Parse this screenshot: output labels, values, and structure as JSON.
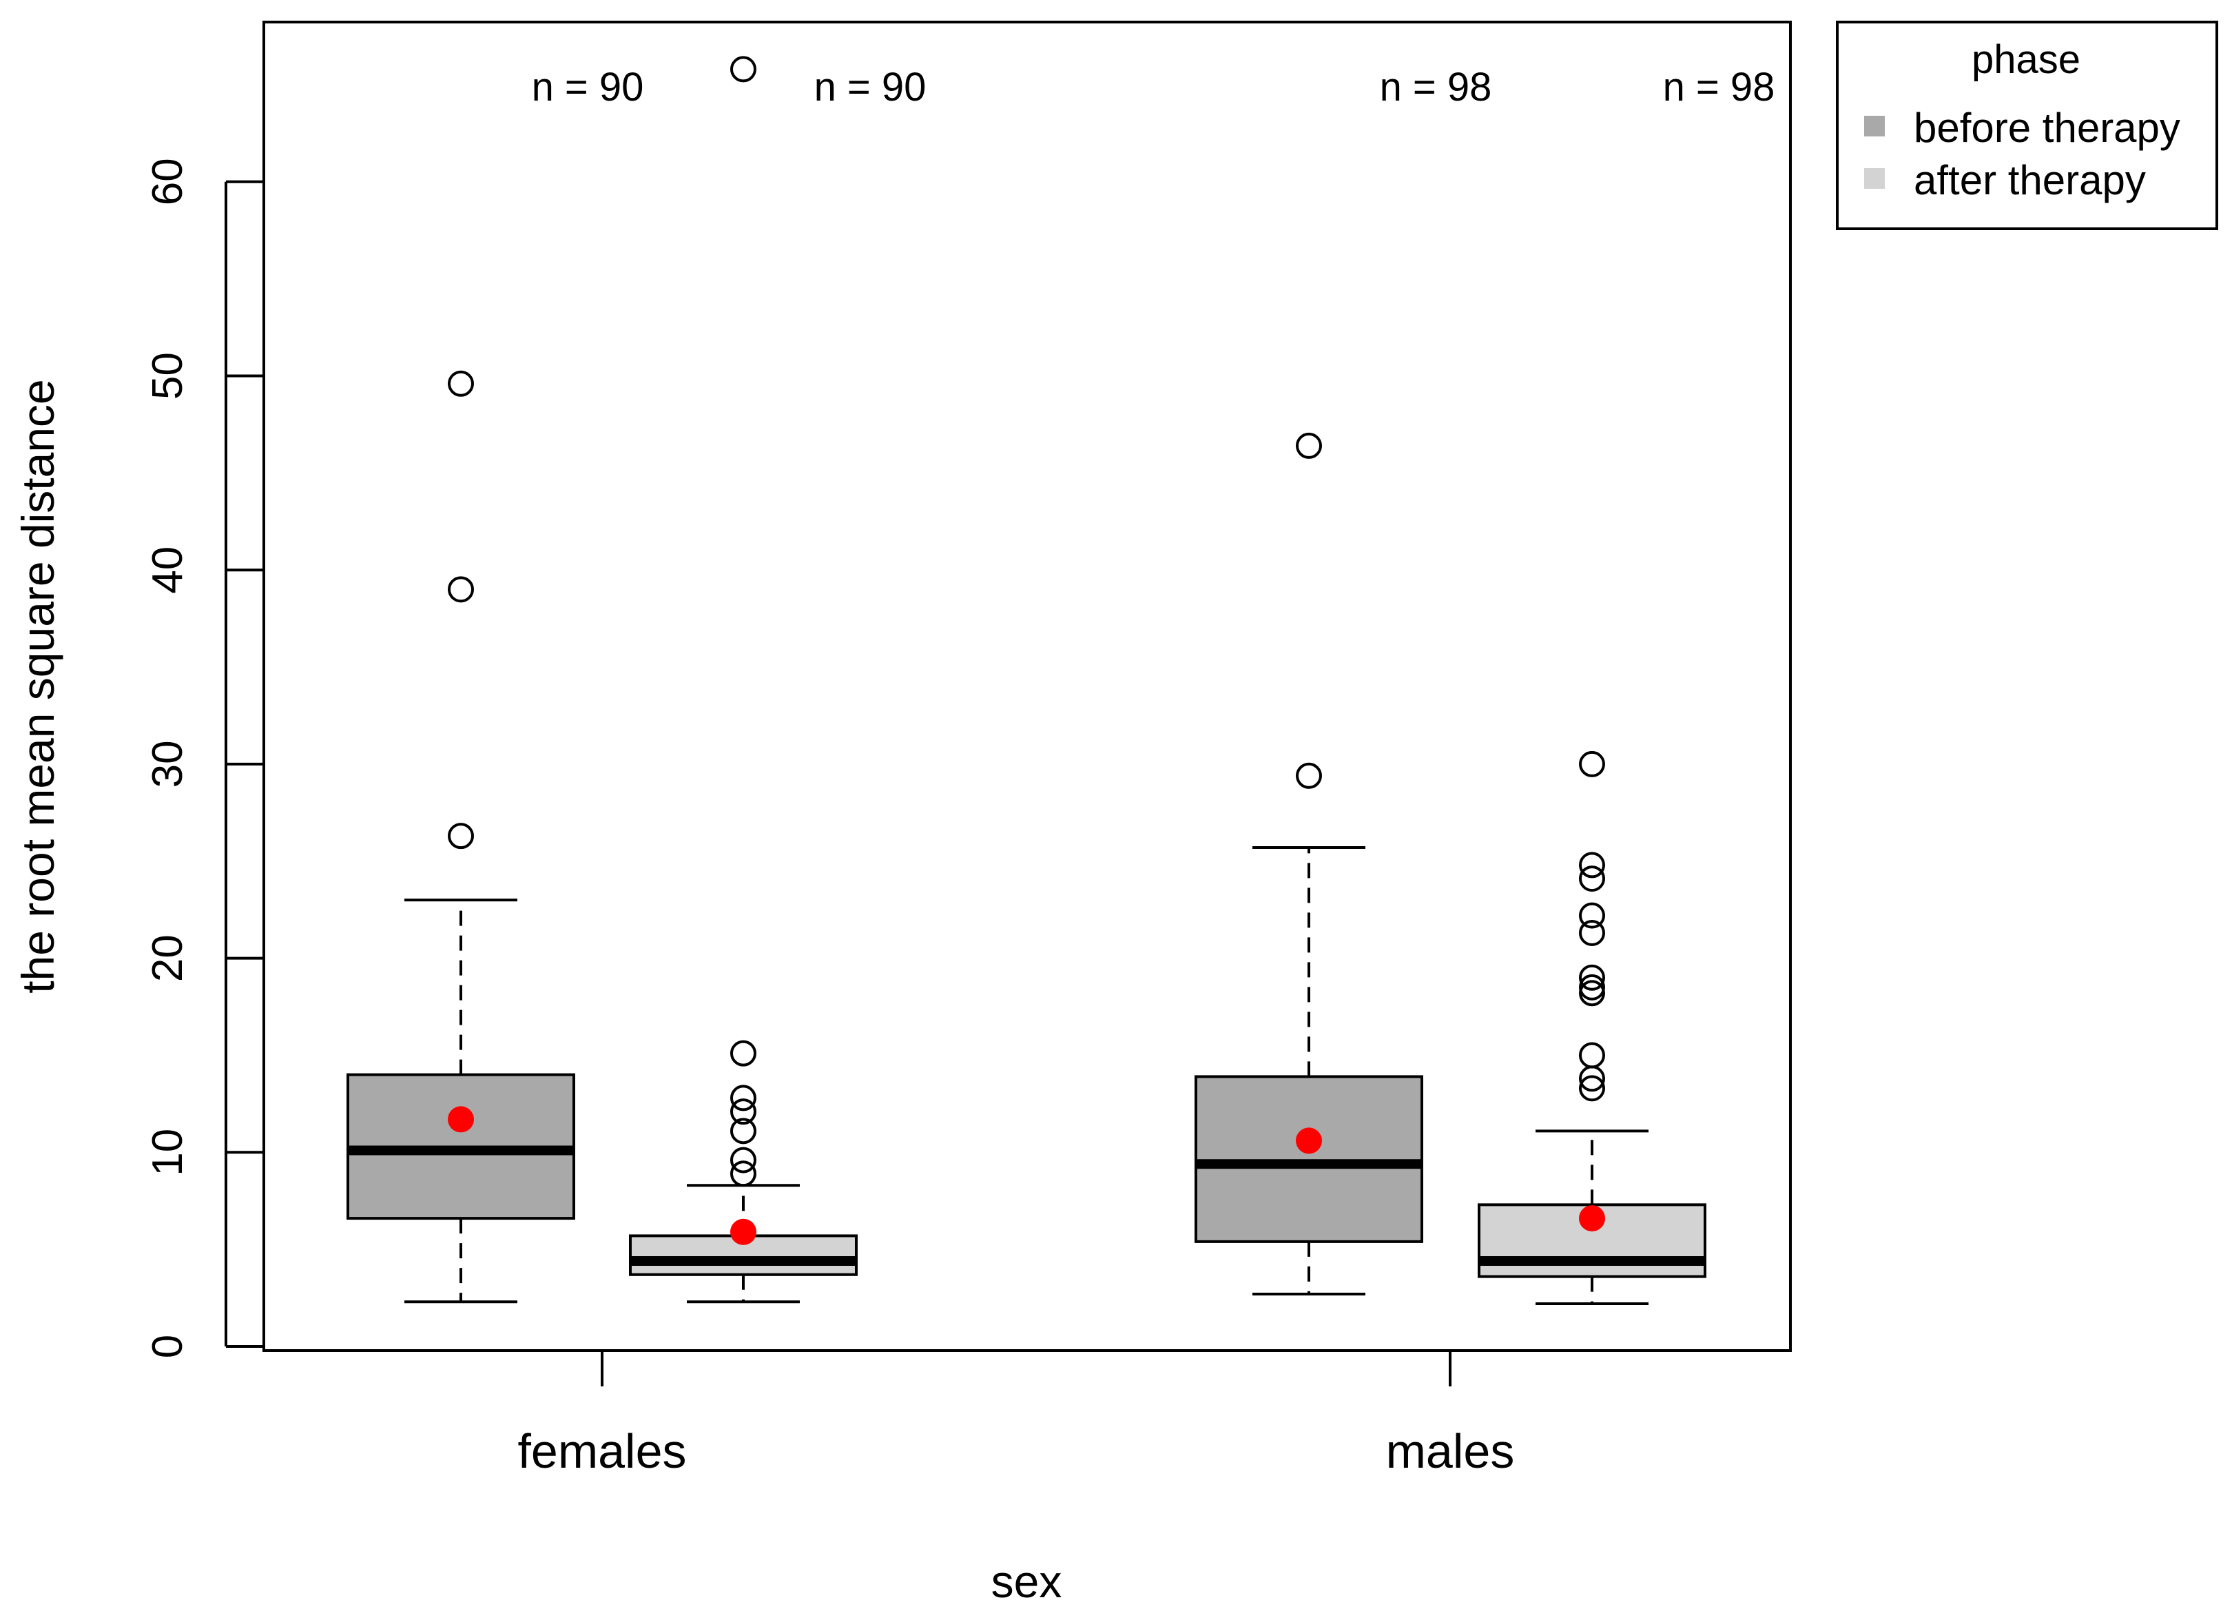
{
  "chart_data": {
    "type": "boxplot",
    "title": "",
    "xlabel": "sex",
    "ylabel": "the root mean square distance",
    "ylim": [
      0,
      65
    ],
    "yticks": [
      0,
      10,
      20,
      30,
      40,
      50,
      60
    ],
    "categories": [
      "females",
      "males"
    ],
    "legend": {
      "title": "phase",
      "position": "top-right-outside",
      "entries": [
        {
          "label": "before therapy",
          "color": "#a9a9a9"
        },
        {
          "label": "after therapy",
          "color": "#d3d3d3"
        }
      ]
    },
    "mean_marker_color": "#ff0000",
    "groups": [
      {
        "category": "females",
        "phase": "before therapy",
        "n_label": "n = 90",
        "color": "#a9a9a9",
        "whisker_low": 2.3,
        "q1": 6.6,
        "median": 10.1,
        "q3": 14.0,
        "whisker_high": 23.0,
        "mean": 11.7,
        "outliers": [
          26.3,
          39.0,
          49.6
        ]
      },
      {
        "category": "females",
        "phase": "after therapy",
        "n_label": "n = 90",
        "color": "#d3d3d3",
        "whisker_low": 2.3,
        "q1": 3.7,
        "median": 4.4,
        "q3": 5.7,
        "whisker_high": 8.3,
        "mean": 5.9,
        "outliers": [
          8.9,
          9.6,
          11.1,
          12.1,
          12.8,
          15.1,
          65.8
        ]
      },
      {
        "category": "males",
        "phase": "before therapy",
        "n_label": "n = 98",
        "color": "#a9a9a9",
        "whisker_low": 2.7,
        "q1": 5.4,
        "median": 9.4,
        "q3": 13.9,
        "whisker_high": 25.7,
        "mean": 10.6,
        "outliers": [
          29.4,
          46.4
        ]
      },
      {
        "category": "males",
        "phase": "after therapy",
        "n_label": "n = 98",
        "color": "#d3d3d3",
        "whisker_low": 2.2,
        "q1": 3.6,
        "median": 4.4,
        "q3": 7.3,
        "whisker_high": 11.1,
        "mean": 6.6,
        "outliers": [
          13.3,
          13.8,
          15.0,
          18.2,
          18.5,
          19.0,
          21.3,
          22.2,
          24.1,
          24.8,
          30.0
        ]
      }
    ]
  }
}
